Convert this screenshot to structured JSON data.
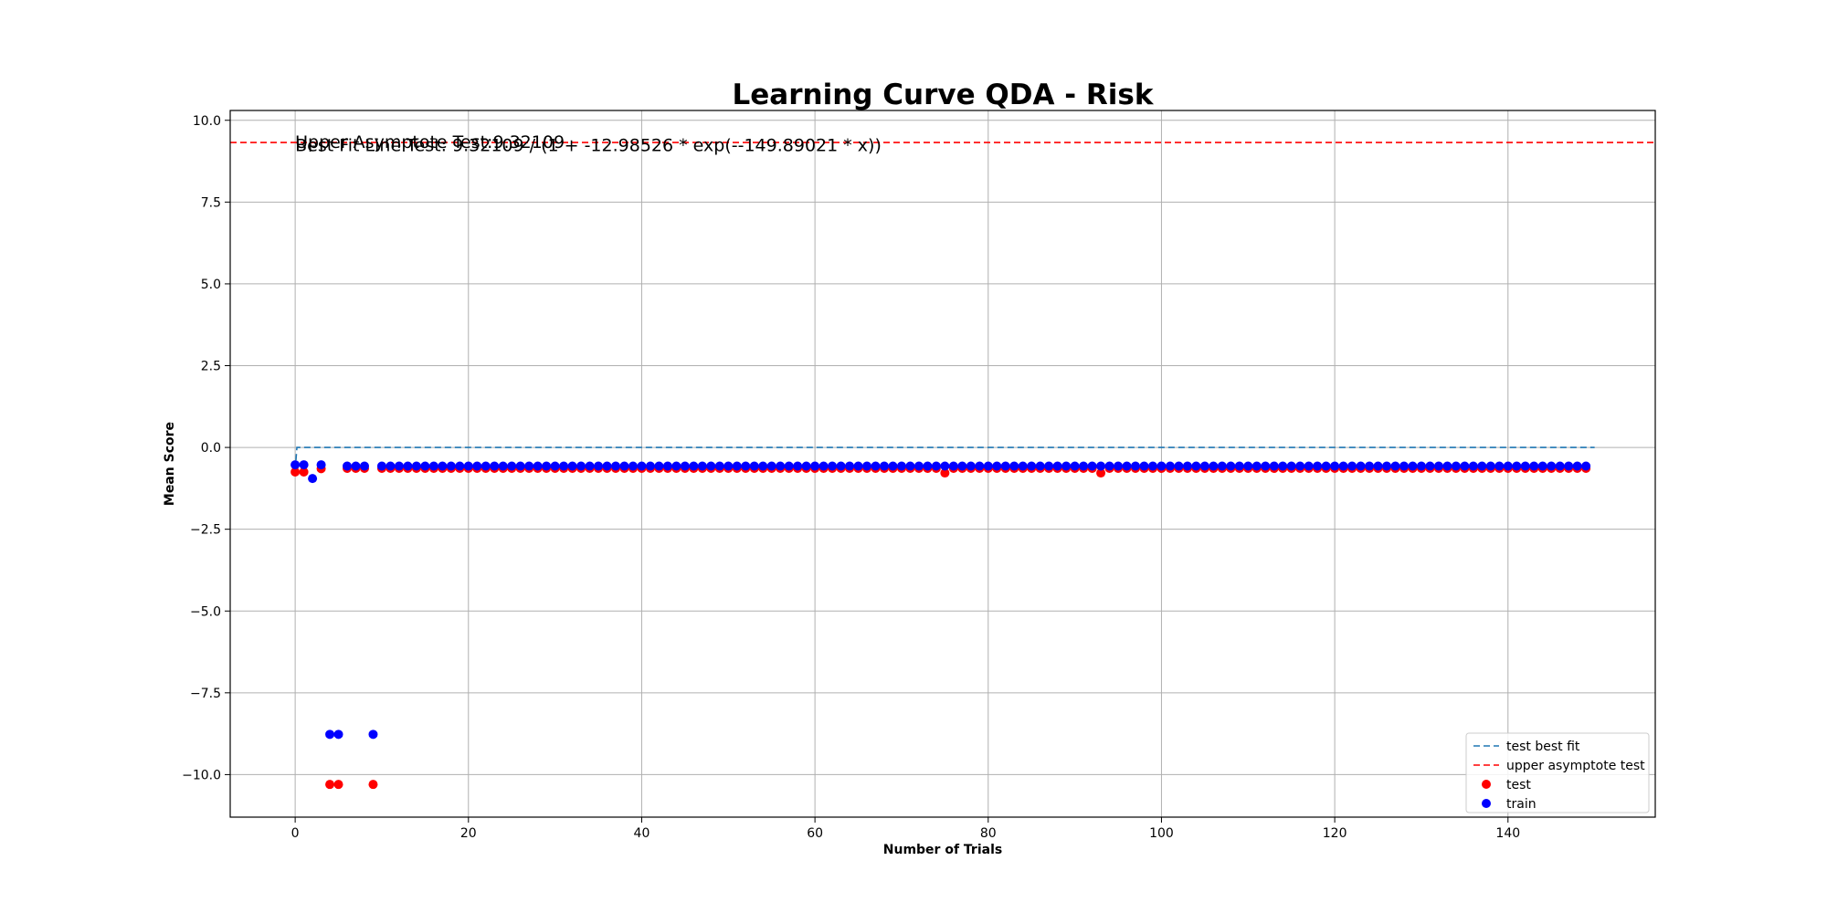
{
  "chart_data": {
    "type": "scatter",
    "title": "Learning Curve QDA - Risk",
    "xlabel": "Number of Trials",
    "ylabel": "Mean Score",
    "xlim": [
      -7.5,
      157
    ],
    "ylim": [
      -11.3,
      10.3
    ],
    "grid": true,
    "legend_position": "lower-right",
    "x_ticks": [
      0,
      20,
      40,
      60,
      80,
      100,
      120,
      140
    ],
    "x_tick_labels": [
      "0",
      "20",
      "40",
      "60",
      "80",
      "100",
      "120",
      "140"
    ],
    "y_ticks": [
      10.0,
      7.5,
      5.0,
      2.5,
      0.0,
      -2.5,
      -5.0,
      -7.5,
      -10.0
    ],
    "y_tick_labels": [
      "10.0",
      "7.5",
      "5.0",
      "2.5",
      "0.0",
      "−2.5",
      "−5.0",
      "−7.5",
      "−10.0"
    ],
    "annotations": [
      "Upper Asymptote Test:9.32109",
      "Best Fit Line Test: 9.32109 / (1 + -12.98526 * exp(--149.89021 * x))"
    ],
    "annotation_positions": [
      [
        0,
        9.3
      ],
      [
        0,
        9.2
      ]
    ],
    "legend": [
      {
        "label": "test best fit",
        "kind": "dashed-line",
        "color": "#1f77b4"
      },
      {
        "label": "upper asymptote test",
        "kind": "dashed-line",
        "color": "#ff0000"
      },
      {
        "label": "test",
        "kind": "marker",
        "color": "#ff0000"
      },
      {
        "label": "train",
        "kind": "marker",
        "color": "#0000ff"
      }
    ],
    "upper_asymptote": {
      "name": "upper asymptote test",
      "y": 9.32109,
      "color": "#ff0000"
    },
    "best_fit": {
      "name": "test best fit",
      "color": "#1f77b4",
      "x": [
        0,
        0.2,
        150
      ],
      "y": [
        -0.7,
        0.0,
        0.0
      ]
    },
    "series": [
      {
        "name": "test",
        "color": "#ff0000",
        "n": 150,
        "default_y": -0.64,
        "overrides": {
          "0": -0.75,
          "1": -0.75,
          "3": -0.65,
          "4": -10.3,
          "5": -10.3,
          "9": -10.3,
          "75": -0.78,
          "93": -0.78
        },
        "missing": [
          2
        ]
      },
      {
        "name": "train",
        "color": "#0000ff",
        "n": 150,
        "default_y": -0.57,
        "overrides": {
          "0": -0.53,
          "1": -0.53,
          "2": -0.95,
          "3": -0.53,
          "4": -8.77,
          "5": -8.77,
          "9": -8.77
        },
        "missing": []
      }
    ]
  }
}
